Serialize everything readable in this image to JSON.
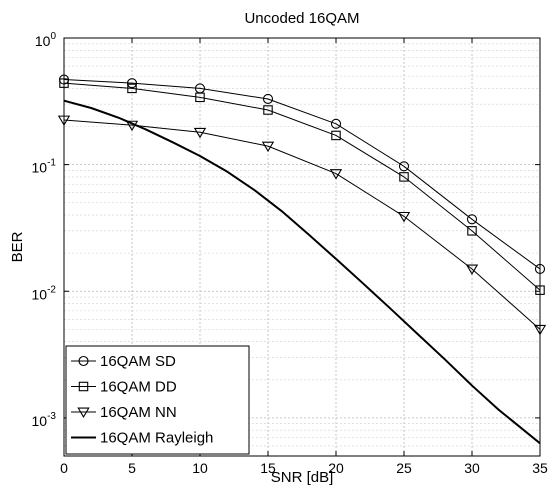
{
  "chart_data": {
    "type": "line",
    "title": "Uncoded 16QAM",
    "xlabel": "SNR [dB]",
    "ylabel": "BER",
    "xlim": [
      0,
      35
    ],
    "ylim": [
      0.0005,
      1
    ],
    "yscale": "log",
    "grid": true,
    "legend_position": "bottom-left",
    "x_ticks": [
      "0",
      "5",
      "10",
      "15",
      "20",
      "25",
      "30",
      "35"
    ],
    "y_ticks": [
      {
        "base": "10",
        "exp": "0",
        "value": 1
      },
      {
        "base": "10",
        "exp": "-1",
        "value": 0.1
      },
      {
        "base": "10",
        "exp": "-2",
        "value": 0.01
      },
      {
        "base": "10",
        "exp": "-3",
        "value": 0.001
      }
    ],
    "series": [
      {
        "name": "16QAM SD",
        "marker": "circle",
        "line_width": 1,
        "x": [
          0,
          5,
          10,
          15,
          20,
          25,
          30,
          35
        ],
        "y": [
          0.47,
          0.44,
          0.4,
          0.33,
          0.21,
          0.097,
          0.037,
          0.015
        ]
      },
      {
        "name": "16QAM DD",
        "marker": "square",
        "line_width": 1,
        "x": [
          0,
          5,
          10,
          15,
          20,
          25,
          30,
          35
        ],
        "y": [
          0.44,
          0.4,
          0.34,
          0.27,
          0.17,
          0.08,
          0.03,
          0.0102
        ]
      },
      {
        "name": "16QAM NN",
        "marker": "triangle-down",
        "line_width": 1,
        "x": [
          0,
          5,
          10,
          15,
          20,
          25,
          30,
          35
        ],
        "y": [
          0.225,
          0.205,
          0.18,
          0.14,
          0.085,
          0.039,
          0.015,
          0.005
        ]
      },
      {
        "name": "16QAM Rayleigh",
        "marker": "none",
        "line_width": 2,
        "x": [
          0,
          2,
          4,
          6,
          8,
          10,
          12,
          14,
          16,
          18,
          20,
          22,
          24,
          26,
          28,
          30,
          32,
          35
        ],
        "y": [
          0.32,
          0.28,
          0.235,
          0.19,
          0.15,
          0.117,
          0.088,
          0.063,
          0.043,
          0.028,
          0.018,
          0.0115,
          0.0073,
          0.0046,
          0.0029,
          0.0018,
          0.00115,
          0.00063
        ]
      }
    ]
  }
}
